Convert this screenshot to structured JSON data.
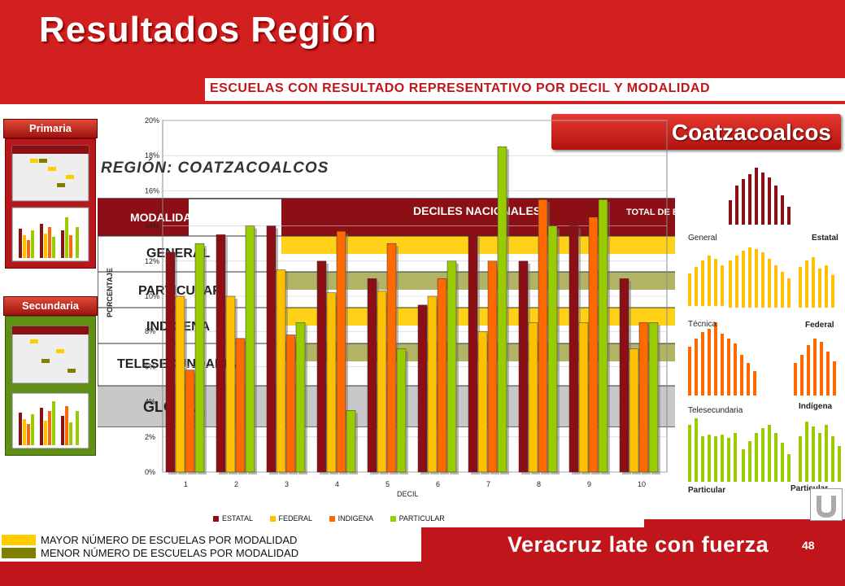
{
  "header": {
    "title": "Resultados Región",
    "subtitle": "ESCUELAS CON RESULTADO REPRESENTATIVO POR DECIL Y MODALIDAD"
  },
  "city": "Coatzacoalcos",
  "sidebar": {
    "primaria_label": "Primaria",
    "secundaria_label": "Secundaria"
  },
  "region_label": "REGIÓN: COATZACOALCOS",
  "table": {
    "col_modalidad": "MODALIDAD",
    "col_deciles": "DECILES NACIONALES",
    "col_total": "TOTAL DE ESCUELAS",
    "rows": [
      "GENERAL",
      "PARTICULAR",
      "INDIGENA",
      "TELESECUNDARIA",
      "GLOBAL"
    ]
  },
  "mini_panels": {
    "general": "General",
    "estatal": "Estatal",
    "tecnica": "Técnica",
    "federal": "Federal",
    "indigena": "Indígena",
    "telesecundaria": "Telesecundaria",
    "particular_left": "Particular",
    "particular_right": "Particular"
  },
  "legend_keys": {
    "mayor": "MAYOR NÚMERO DE ESCUELAS POR MODALIDAD",
    "menor": "MENOR NÚMERO DE ESCUELAS POR MODALIDAD",
    "mayor_color": "#ffcc00",
    "menor_color": "#808000"
  },
  "footer": {
    "slogan": "Veracruz late con fuerza",
    "page": "48"
  },
  "chart_data": {
    "type": "bar",
    "xlabel": "DECIL",
    "ylabel": "PORCENTAJE",
    "categories": [
      "1",
      "2",
      "3",
      "4",
      "5",
      "6",
      "7",
      "8",
      "9",
      "10"
    ],
    "ylim": [
      0,
      20
    ],
    "yticks": [
      "0%",
      "2%",
      "4%",
      "6%",
      "8%",
      "10%",
      "12%",
      "14%",
      "16%",
      "18%",
      "20%"
    ],
    "series": [
      {
        "name": "ESTATAL",
        "color": "#8b0f14",
        "values": [
          12.5,
          13.5,
          14,
          12,
          11,
          9.5,
          13.5,
          12,
          14,
          11
        ]
      },
      {
        "name": "FEDERAL",
        "color": "#ffc000",
        "values": [
          10,
          10,
          11.5,
          10.2,
          10.3,
          10,
          8,
          8.5,
          8.5,
          7
        ]
      },
      {
        "name": "INDIGENA",
        "color": "#ff6a00",
        "values": [
          5.8,
          7.6,
          7.8,
          13.7,
          13,
          11,
          12,
          15.5,
          14.5,
          8.5
        ]
      },
      {
        "name": "PARTICULAR",
        "color": "#99cc00",
        "values": [
          13,
          14,
          8.5,
          3.5,
          7,
          12,
          18.5,
          14,
          15.5,
          8.5
        ]
      }
    ]
  }
}
